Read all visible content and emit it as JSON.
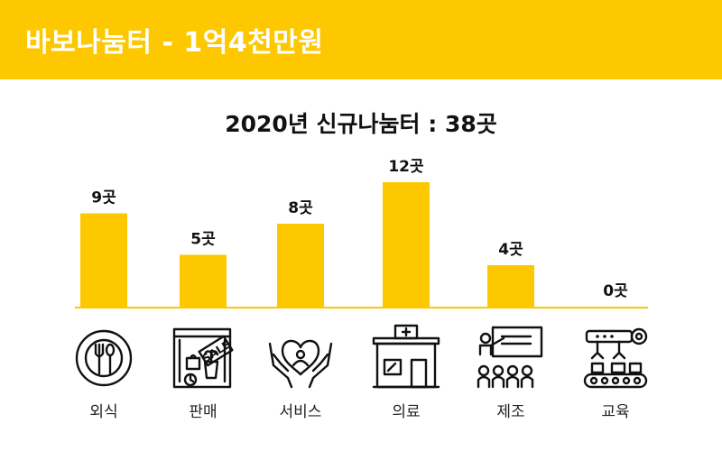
{
  "header": {
    "title": "바보나눔터 - 1억4천만원"
  },
  "colors": {
    "accent": "#FDC800",
    "text": "#111111",
    "baseline": "#FDC800"
  },
  "chart_data": {
    "type": "bar",
    "title": "2020년 신규나눔터 : 38곳",
    "categories": [
      "외식",
      "판매",
      "서비스",
      "의료",
      "제조",
      "교육"
    ],
    "values": [
      9,
      5,
      8,
      12,
      4,
      0
    ],
    "value_labels": [
      "9곳",
      "5곳",
      "8곳",
      "12곳",
      "4곳",
      "0곳"
    ],
    "icons": [
      "plate-fork-spoon-icon",
      "sale-shop-icon",
      "hands-heart-icon",
      "clinic-building-icon",
      "lecture-presenter-icon",
      "factory-conveyor-icon"
    ],
    "xlabel": "",
    "ylabel": "",
    "ylim": [
      0,
      12
    ],
    "grid": false,
    "legend": "none"
  }
}
